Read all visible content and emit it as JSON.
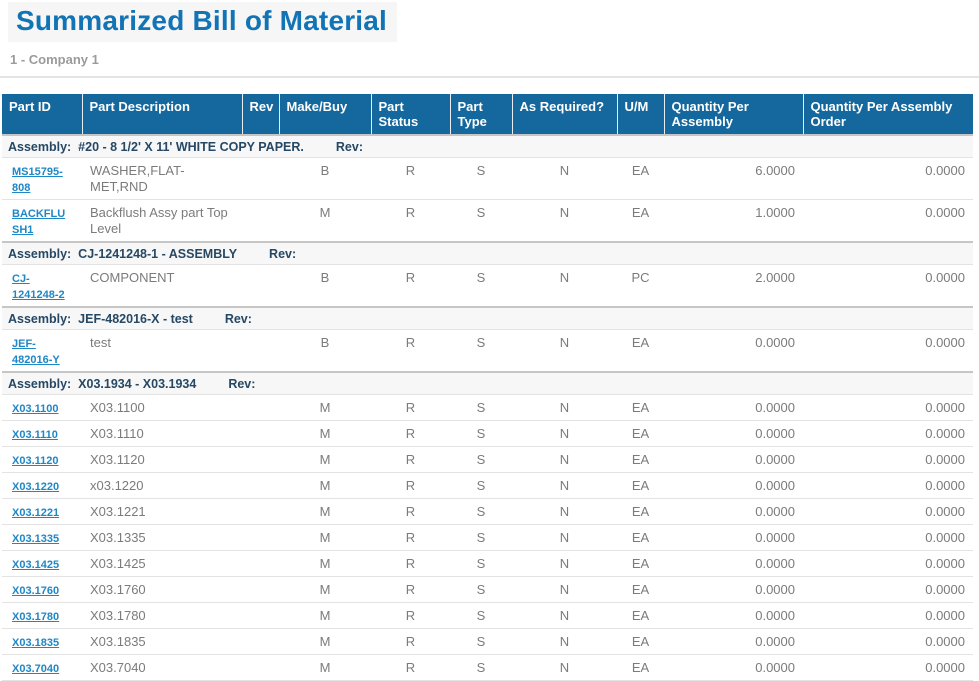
{
  "page": {
    "title": "Summarized Bill of Material",
    "subtitle": "1 - Company 1"
  },
  "colors": {
    "header_blue": "#15689E",
    "title_blue": "#1273B5",
    "link_blue": "#1E87C5",
    "assembly_text": "#264864",
    "body_text": "#7B7B7B"
  },
  "table": {
    "columns": [
      "Part ID",
      "Part Description",
      "Rev",
      "Make/Buy",
      "Part Status",
      "Part Type",
      "As Required?",
      "U/M",
      "Quantity Per Assembly",
      "Quantity Per Assembly Order"
    ],
    "assembly_label": "Assembly:",
    "rev_label": "Rev:",
    "groups": [
      {
        "assembly_id": "#20",
        "assembly_desc": "8 1/2' X 11' WHITE COPY PAPER.",
        "rows": [
          {
            "part_id": "MS15795-808",
            "description": "WASHER,FLAT-MET,RND",
            "rev": "",
            "make_buy": "B",
            "part_status": "R",
            "part_type": "S",
            "as_required": "N",
            "um": "EA",
            "qty_per_assembly": "6.0000",
            "qty_per_assembly_order": "0.0000"
          },
          {
            "part_id": "BACKFLUSH1",
            "description": "Backflush Assy part Top Level",
            "rev": "",
            "make_buy": "M",
            "part_status": "R",
            "part_type": "S",
            "as_required": "N",
            "um": "EA",
            "qty_per_assembly": "1.0000",
            "qty_per_assembly_order": "0.0000"
          }
        ]
      },
      {
        "assembly_id": "CJ-1241248-1",
        "assembly_desc": "ASSEMBLY",
        "rows": [
          {
            "part_id": "CJ-1241248-2",
            "description": "COMPONENT",
            "rev": "",
            "make_buy": "B",
            "part_status": "R",
            "part_type": "S",
            "as_required": "N",
            "um": "PC",
            "qty_per_assembly": "2.0000",
            "qty_per_assembly_order": "0.0000"
          }
        ]
      },
      {
        "assembly_id": "JEF-482016-X",
        "assembly_desc": "test",
        "rows": [
          {
            "part_id": "JEF-482016-Y",
            "description": "test",
            "rev": "",
            "make_buy": "B",
            "part_status": "R",
            "part_type": "S",
            "as_required": "N",
            "um": "EA",
            "qty_per_assembly": "0.0000",
            "qty_per_assembly_order": "0.0000"
          }
        ]
      },
      {
        "assembly_id": "X03.1934",
        "assembly_desc": "X03.1934",
        "rows": [
          {
            "part_id": "X03.1100",
            "description": "X03.1100",
            "rev": "",
            "make_buy": "M",
            "part_status": "R",
            "part_type": "S",
            "as_required": "N",
            "um": "EA",
            "qty_per_assembly": "0.0000",
            "qty_per_assembly_order": "0.0000"
          },
          {
            "part_id": "X03.1110",
            "description": "X03.1110",
            "rev": "",
            "make_buy": "M",
            "part_status": "R",
            "part_type": "S",
            "as_required": "N",
            "um": "EA",
            "qty_per_assembly": "0.0000",
            "qty_per_assembly_order": "0.0000"
          },
          {
            "part_id": "X03.1120",
            "description": "X03.1120",
            "rev": "",
            "make_buy": "M",
            "part_status": "R",
            "part_type": "S",
            "as_required": "N",
            "um": "EA",
            "qty_per_assembly": "0.0000",
            "qty_per_assembly_order": "0.0000"
          },
          {
            "part_id": "X03.1220",
            "description": "x03.1220",
            "rev": "",
            "make_buy": "M",
            "part_status": "R",
            "part_type": "S",
            "as_required": "N",
            "um": "EA",
            "qty_per_assembly": "0.0000",
            "qty_per_assembly_order": "0.0000"
          },
          {
            "part_id": "X03.1221",
            "description": "X03.1221",
            "rev": "",
            "make_buy": "M",
            "part_status": "R",
            "part_type": "S",
            "as_required": "N",
            "um": "EA",
            "qty_per_assembly": "0.0000",
            "qty_per_assembly_order": "0.0000"
          },
          {
            "part_id": "X03.1335",
            "description": "X03.1335",
            "rev": "",
            "make_buy": "M",
            "part_status": "R",
            "part_type": "S",
            "as_required": "N",
            "um": "EA",
            "qty_per_assembly": "0.0000",
            "qty_per_assembly_order": "0.0000"
          },
          {
            "part_id": "X03.1425",
            "description": "X03.1425",
            "rev": "",
            "make_buy": "M",
            "part_status": "R",
            "part_type": "S",
            "as_required": "N",
            "um": "EA",
            "qty_per_assembly": "0.0000",
            "qty_per_assembly_order": "0.0000"
          },
          {
            "part_id": "X03.1760",
            "description": "X03.1760",
            "rev": "",
            "make_buy": "M",
            "part_status": "R",
            "part_type": "S",
            "as_required": "N",
            "um": "EA",
            "qty_per_assembly": "0.0000",
            "qty_per_assembly_order": "0.0000"
          },
          {
            "part_id": "X03.1780",
            "description": "X03.1780",
            "rev": "",
            "make_buy": "M",
            "part_status": "R",
            "part_type": "S",
            "as_required": "N",
            "um": "EA",
            "qty_per_assembly": "0.0000",
            "qty_per_assembly_order": "0.0000"
          },
          {
            "part_id": "X03.1835",
            "description": "X03.1835",
            "rev": "",
            "make_buy": "M",
            "part_status": "R",
            "part_type": "S",
            "as_required": "N",
            "um": "EA",
            "qty_per_assembly": "0.0000",
            "qty_per_assembly_order": "0.0000"
          },
          {
            "part_id": "X03.7040",
            "description": "X03.7040",
            "rev": "",
            "make_buy": "M",
            "part_status": "R",
            "part_type": "S",
            "as_required": "N",
            "um": "EA",
            "qty_per_assembly": "0.0000",
            "qty_per_assembly_order": "0.0000"
          }
        ]
      }
    ]
  }
}
